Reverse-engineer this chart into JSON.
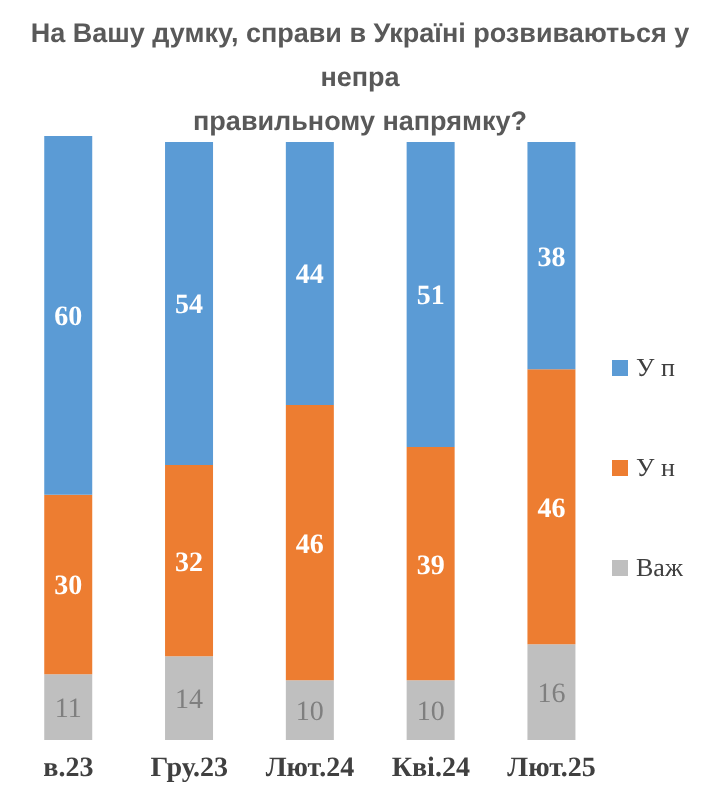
{
  "chart_data": {
    "type": "bar",
    "title": "На Вашу думку, справи в Україні розвиваються у непра\nправильному напрямку?",
    "categories": [
      "в.23",
      "Гру.23",
      "Лют.24",
      "Кві.24",
      "Лют.25"
    ],
    "stacked": true,
    "data_labels": true,
    "legend": "right",
    "series": [
      {
        "name": "Важ",
        "color": "#bfbfbf",
        "values": [
          11,
          14,
          10,
          10,
          16
        ]
      },
      {
        "name": "У н",
        "color": "#ed7d31",
        "values": [
          30,
          32,
          46,
          39,
          46
        ]
      },
      {
        "name": "У п",
        "color": "#5b9bd5",
        "values": [
          60,
          54,
          44,
          51,
          38
        ]
      }
    ]
  }
}
